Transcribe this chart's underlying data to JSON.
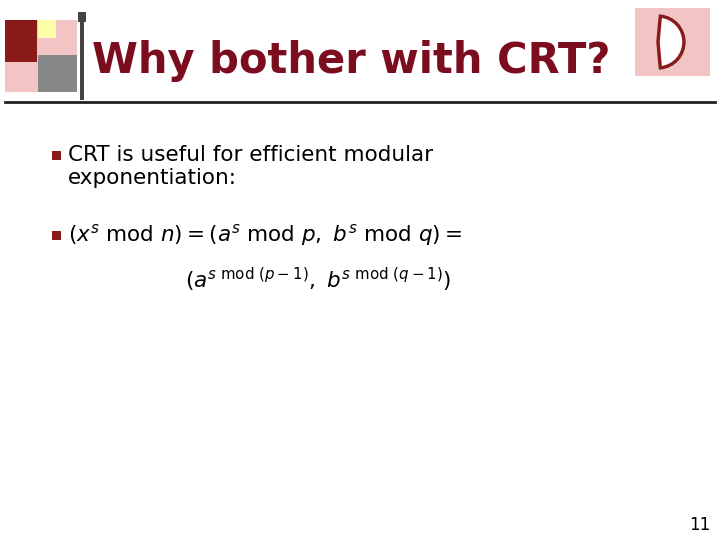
{
  "title": "Why bother with CRT?",
  "title_color": "#7b0d1e",
  "title_fontsize": 30,
  "background_color": "#ffffff",
  "bullet1_line1": "CRT is useful for efficient modular",
  "bullet1_line2": "exponentiation:",
  "slide_number": "11",
  "header_line_color": "#222222",
  "bullet_color": "#8b1a1a",
  "text_color": "#000000",
  "text_fontsize": 15.5,
  "formula1": "$(x^s\\ \\mathrm{mod}\\ n) = (a^s\\ \\mathrm{mod}\\ p,\\ b^s\\ \\mathrm{mod}\\ q) =$",
  "formula2": "$(a^{s\\ \\mathrm{mod}\\ (p-1)},\\ b^{s\\ \\mathrm{mod}\\ (q-1)})$",
  "logo_pink": "#f2c4c4",
  "logo_dark_red": "#8b1a1a",
  "logo_gray": "#888888",
  "logo_dark_gray": "#444444",
  "logo_yellow": "#ffffaa",
  "logo_white": "#ffffff",
  "top_right_pink": "#f2c4c4",
  "top_right_dark": "#8b1a1a"
}
